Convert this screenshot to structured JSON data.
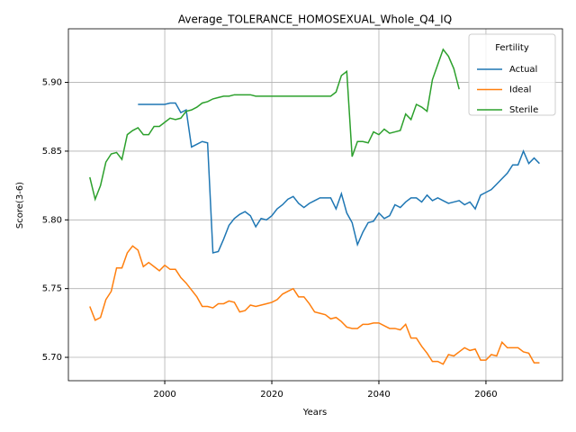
{
  "chart_data": {
    "type": "line",
    "title": "Average_TOLERANCE_HOMOSEXUAL_Whole_Q4_IQ",
    "x_label": "Years",
    "y_label": "Score(3-6)",
    "legend_title": "Fertility",
    "legend_corner": "upper right",
    "grid": true,
    "x": [
      1986,
      1987,
      1988,
      1989,
      1990,
      1991,
      1992,
      1993,
      1994,
      1995,
      1996,
      1997,
      1998,
      1999,
      2000,
      2001,
      2002,
      2003,
      2004,
      2005,
      2006,
      2007,
      2008,
      2009,
      2010,
      2011,
      2012,
      2013,
      2014,
      2015,
      2016,
      2017,
      2018,
      2019,
      2020,
      2021,
      2022,
      2023,
      2024,
      2025,
      2026,
      2027,
      2028,
      2029,
      2030,
      2031,
      2032,
      2033,
      2034,
      2035,
      2036,
      2037,
      2038,
      2039,
      2040,
      2041,
      2042,
      2043,
      2044,
      2045,
      2046,
      2047,
      2048,
      2049,
      2050,
      2051,
      2052,
      2053,
      2054,
      2055,
      2056,
      2057,
      2058,
      2059,
      2060,
      2061,
      2062,
      2063,
      2064,
      2065,
      2066,
      2067,
      2068,
      2069,
      2070
    ],
    "xlim": [
      1982.0,
      2074.3
    ],
    "xticks": [
      2000,
      2020,
      2040,
      2060
    ],
    "ylim": [
      5.683,
      5.939
    ],
    "yticks": [
      {
        "value": 5.7,
        "label": "5.70"
      },
      {
        "value": 5.75,
        "label": "5.75"
      },
      {
        "value": 5.8,
        "label": "5.80"
      },
      {
        "value": 5.85,
        "label": "5.85"
      },
      {
        "value": 5.9,
        "label": "5.90"
      }
    ],
    "series": [
      {
        "name": "Actual",
        "color": "#1f77b4",
        "values": [
          null,
          null,
          null,
          null,
          null,
          null,
          null,
          null,
          null,
          5.884,
          5.884,
          5.884,
          5.884,
          5.884,
          5.884,
          5.885,
          5.885,
          5.878,
          5.88,
          5.853,
          5.855,
          5.857,
          5.856,
          5.776,
          5.777,
          5.786,
          5.796,
          5.801,
          5.804,
          5.806,
          5.803,
          5.795,
          5.801,
          5.8,
          5.803,
          5.808,
          5.811,
          5.815,
          5.817,
          5.812,
          5.809,
          5.812,
          5.814,
          5.816,
          5.816,
          5.816,
          5.808,
          5.819,
          5.805,
          5.798,
          5.782,
          5.791,
          5.798,
          5.799,
          5.805,
          5.801,
          5.803,
          5.811,
          5.809,
          5.813,
          5.816,
          5.816,
          5.813,
          5.818,
          5.814,
          5.816,
          5.814,
          5.812,
          5.813,
          5.814,
          5.811,
          5.813,
          5.808,
          5.818,
          5.82,
          5.822,
          5.826,
          5.83,
          5.834,
          5.84,
          5.84,
          5.85,
          5.841,
          5.845,
          5.841
        ]
      },
      {
        "name": "Ideal",
        "color": "#ff7f0e",
        "values": [
          5.737,
          5.727,
          5.729,
          5.742,
          5.748,
          5.765,
          5.765,
          5.776,
          5.781,
          5.778,
          5.766,
          5.769,
          5.766,
          5.763,
          5.767,
          5.764,
          5.764,
          5.758,
          5.754,
          5.749,
          5.744,
          5.737,
          5.737,
          5.736,
          5.739,
          5.739,
          5.741,
          5.74,
          5.733,
          5.734,
          5.738,
          5.737,
          5.738,
          5.739,
          5.74,
          5.742,
          5.746,
          5.748,
          5.75,
          5.744,
          5.744,
          5.739,
          5.733,
          5.732,
          5.731,
          5.728,
          5.729,
          5.726,
          5.722,
          5.721,
          5.721,
          5.724,
          5.724,
          5.725,
          5.725,
          5.723,
          5.721,
          5.721,
          5.72,
          5.724,
          5.714,
          5.714,
          5.708,
          5.703,
          5.697,
          5.697,
          5.695,
          5.702,
          5.701,
          5.704,
          5.707,
          5.705,
          5.706,
          5.698,
          5.698,
          5.702,
          5.701,
          5.711,
          5.707,
          5.707,
          5.707,
          5.704,
          5.703,
          5.696,
          5.696
        ]
      },
      {
        "name": "Sterile",
        "color": "#2ca02c",
        "values": [
          5.831,
          5.815,
          5.825,
          5.842,
          5.848,
          5.849,
          5.844,
          5.862,
          5.865,
          5.867,
          5.862,
          5.862,
          5.868,
          5.868,
          5.871,
          5.874,
          5.873,
          5.874,
          5.879,
          5.88,
          5.882,
          5.885,
          5.886,
          5.888,
          5.889,
          5.89,
          5.89,
          5.891,
          5.891,
          5.891,
          5.891,
          5.89,
          5.89,
          5.89,
          5.89,
          5.89,
          5.89,
          5.89,
          5.89,
          5.89,
          5.89,
          5.89,
          5.89,
          5.89,
          5.89,
          5.89,
          5.893,
          5.905,
          5.908,
          5.846,
          5.857,
          5.857,
          5.856,
          5.864,
          5.862,
          5.866,
          5.863,
          5.864,
          5.865,
          5.877,
          5.873,
          5.884,
          5.882,
          5.879,
          5.902,
          5.913,
          5.924,
          5.919,
          5.91,
          5.895,
          null,
          null,
          null,
          null,
          null,
          null,
          null,
          null,
          null,
          null,
          null,
          null,
          null,
          null,
          null
        ]
      }
    ]
  }
}
